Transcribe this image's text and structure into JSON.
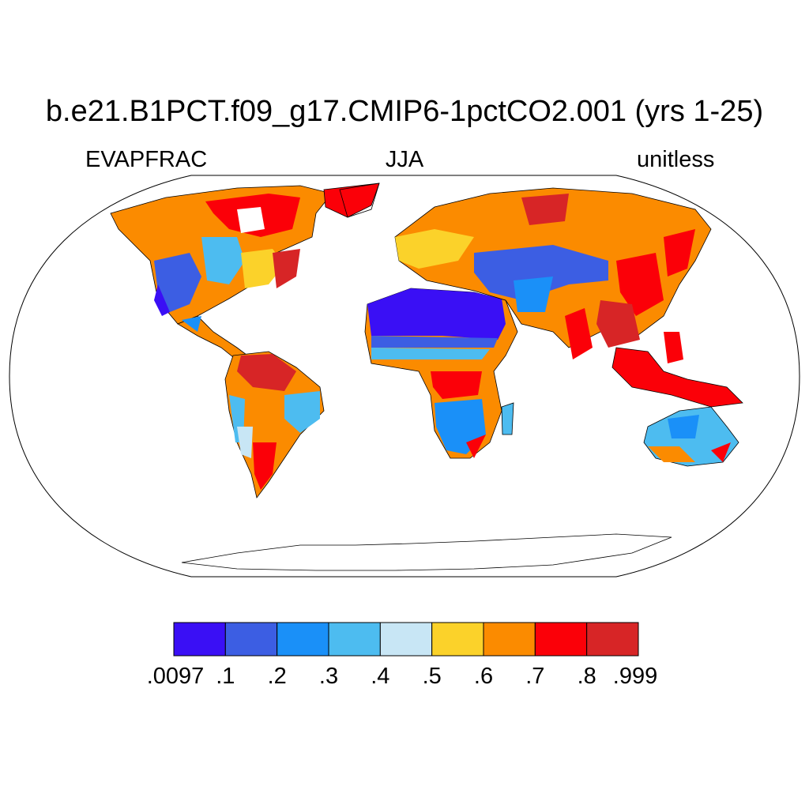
{
  "title": "b.e21.B1PCT.f09_g17.CMIP6-1pctCO2.001 (yrs 1-25)",
  "left_label": "EVAPFRAC",
  "center_label": "JJA",
  "right_label": "unitless",
  "colorbar": {
    "colors": [
      "#3a0ff5",
      "#3c5ee3",
      "#1a90f8",
      "#4dbcf0",
      "#c8e6f5",
      "#fbd22a",
      "#fb8b00",
      "#fb0008",
      "#d72526"
    ],
    "tick_labels": [
      ".0097",
      ".1",
      ".2",
      ".3",
      ".4",
      ".5",
      ".6",
      ".7",
      ".8",
      ".999"
    ]
  },
  "colors": {
    "background": "#ffffff",
    "coastline": "#000000",
    "ocean": "#ffffff"
  }
}
